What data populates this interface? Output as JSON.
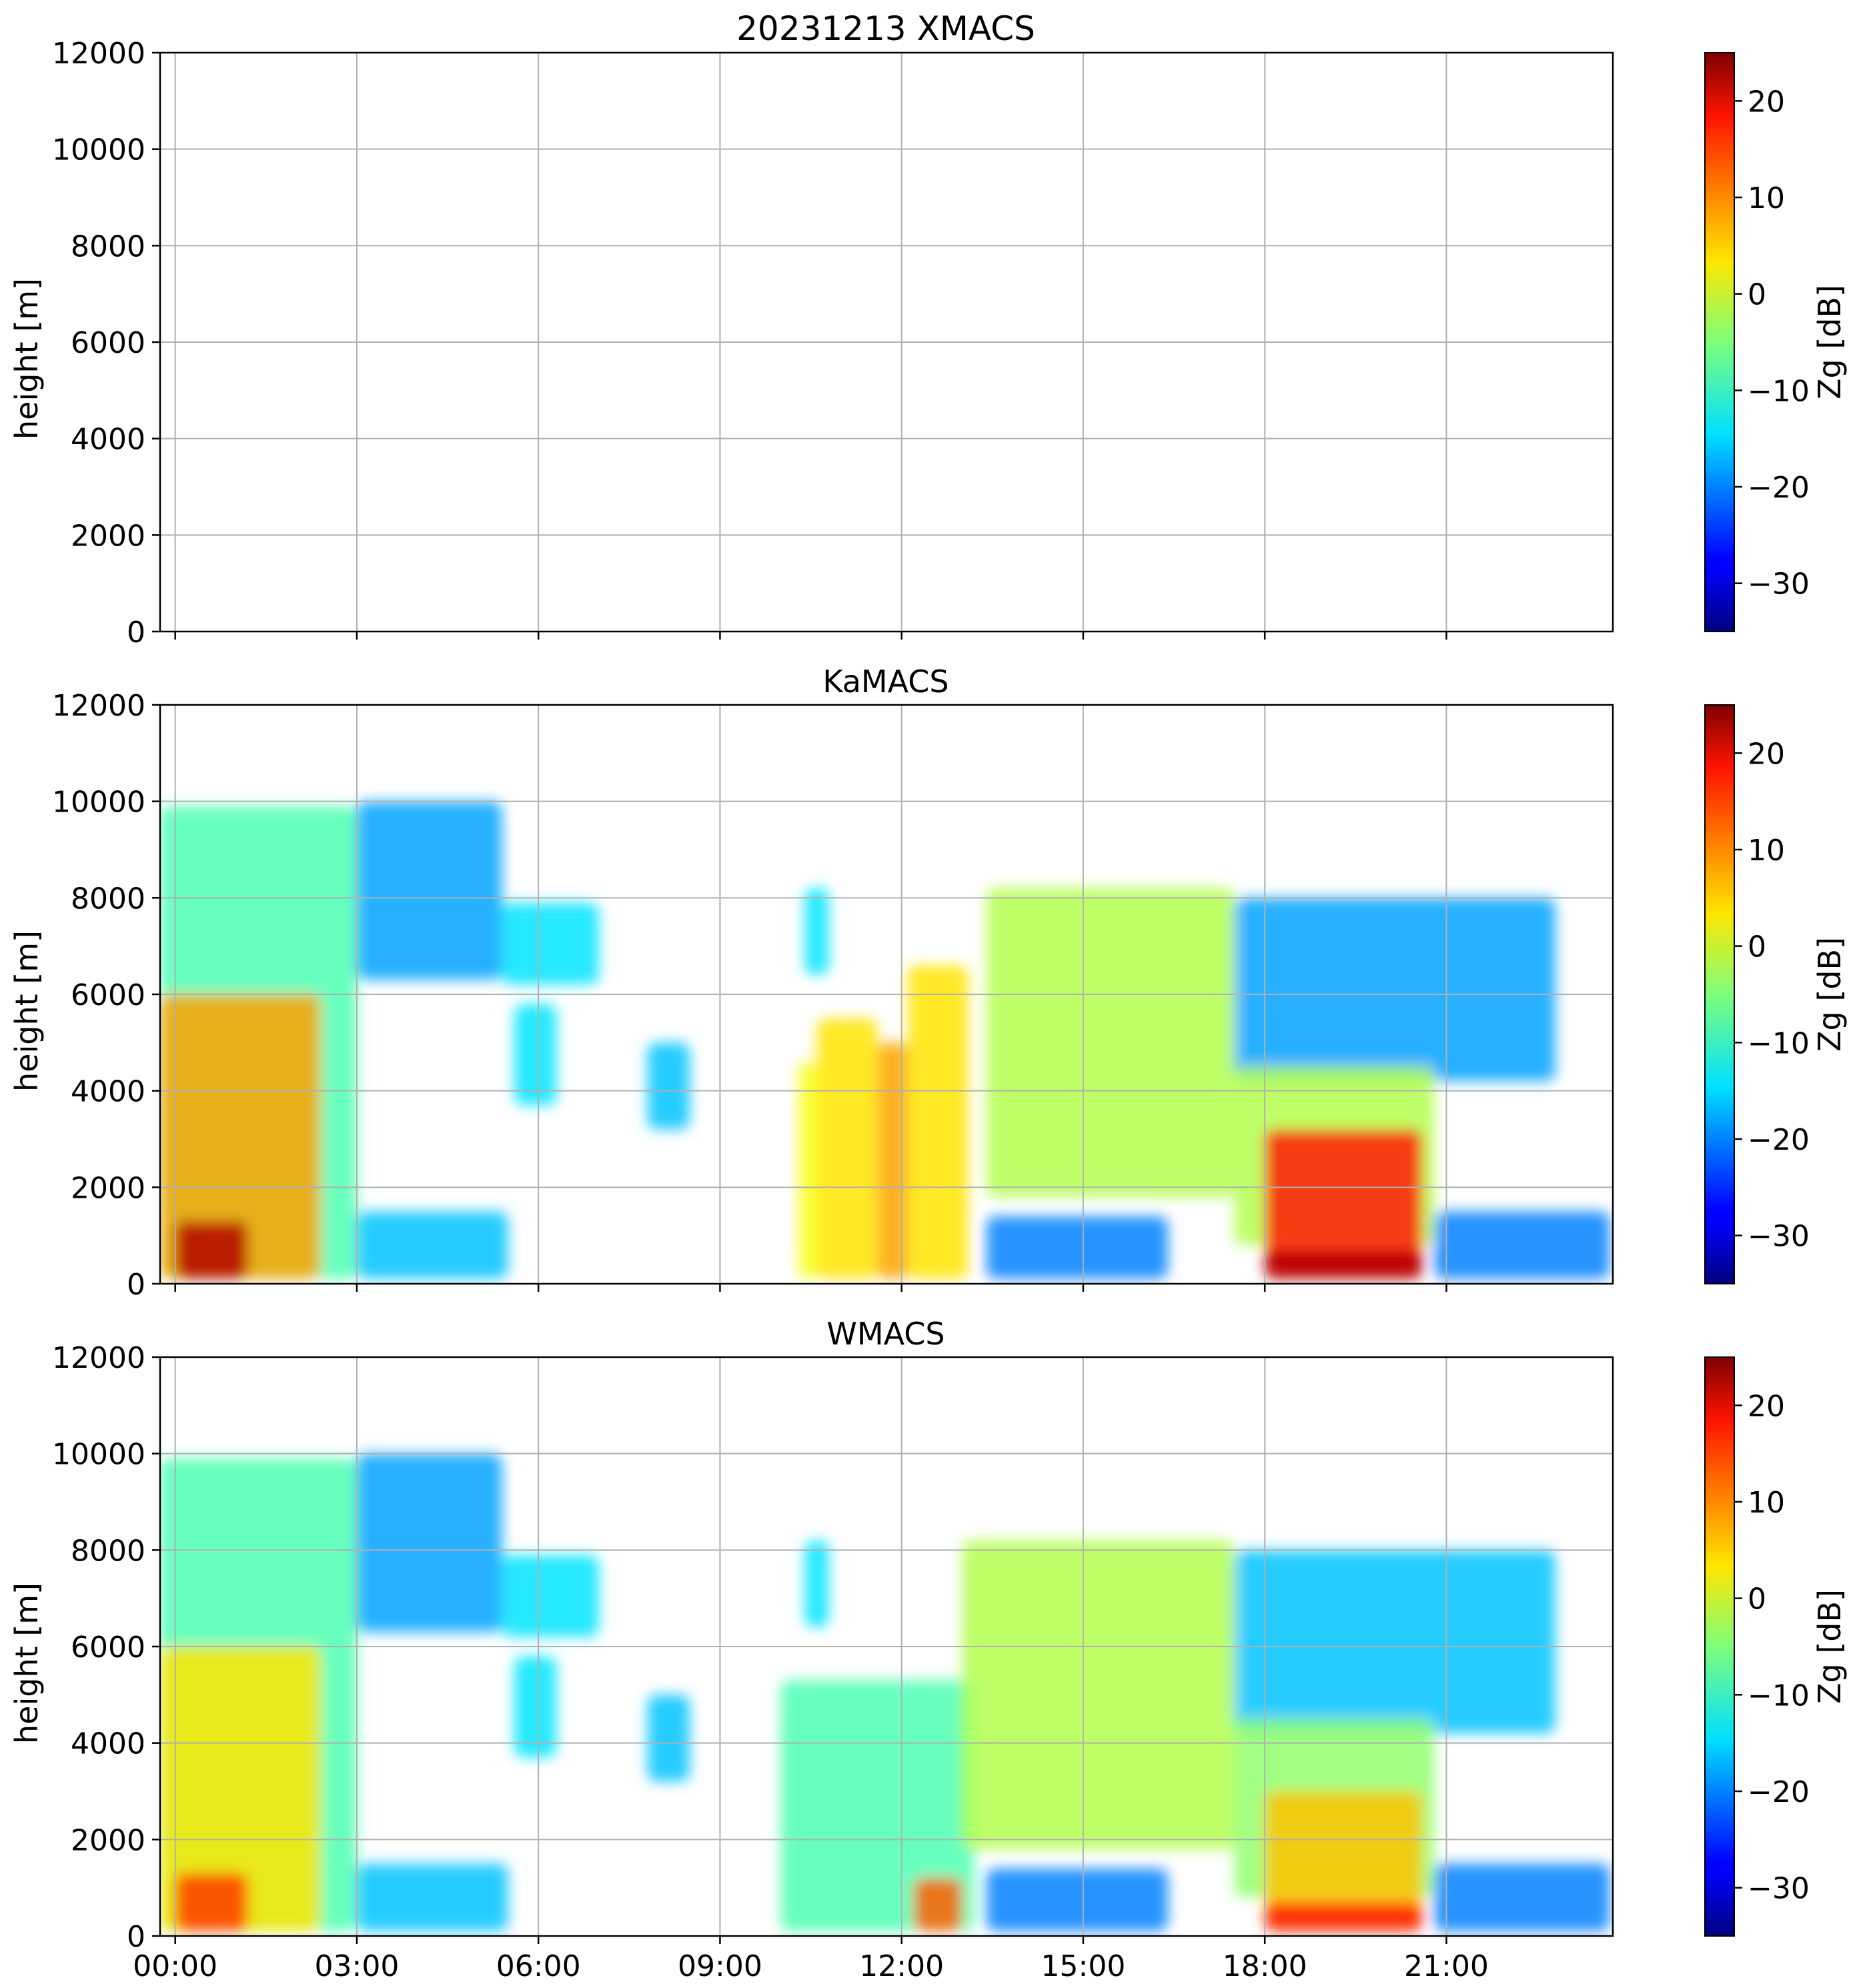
{
  "chart_data": [
    {
      "type": "heatmap",
      "title": "20231213 XMACS",
      "ylabel": "height [m]",
      "ylim": [
        0,
        12000
      ],
      "yticks": [
        "0",
        "2000",
        "4000",
        "6000",
        "8000",
        "10000",
        "12000"
      ],
      "xticks": [],
      "grid": true,
      "colorbar": {
        "label": "Zg [dB]",
        "range": [
          -35,
          25
        ],
        "ticks": [
          "−30",
          "−20",
          "−10",
          "0",
          "10",
          "20"
        ],
        "colormap": "jet"
      },
      "echoes": []
    },
    {
      "type": "heatmap",
      "title": "KaMACS",
      "ylabel": "height [m]",
      "ylim": [
        0,
        12000
      ],
      "yticks": [
        "0",
        "2000",
        "4000",
        "6000",
        "8000",
        "10000",
        "12000"
      ],
      "xticks": [],
      "grid": true,
      "colorbar": {
        "label": "Zg [dB]",
        "range": [
          -35,
          25
        ],
        "ticks": [
          "−30",
          "−20",
          "−10",
          "0",
          "10",
          "20"
        ],
        "colormap": "jet"
      },
      "echoes": [
        {
          "t": [
            -0.25,
            3.0
          ],
          "h": [
            100,
            9900
          ],
          "z": -8
        },
        {
          "t": [
            -0.25,
            2.4
          ],
          "h": [
            100,
            6000
          ],
          "z": 8
        },
        {
          "t": [
            0.0,
            1.2
          ],
          "h": [
            100,
            1300
          ],
          "z": 22
        },
        {
          "t": [
            3.0,
            5.4
          ],
          "h": [
            6300,
            10000
          ],
          "z": -18
        },
        {
          "t": [
            5.4,
            7.0
          ],
          "h": [
            6200,
            7900
          ],
          "z": -14
        },
        {
          "t": [
            5.6,
            6.3
          ],
          "h": [
            3700,
            5800
          ],
          "z": -14
        },
        {
          "t": [
            3.0,
            5.5
          ],
          "h": [
            100,
            1500
          ],
          "z": -16
        },
        {
          "t": [
            7.8,
            8.5
          ],
          "h": [
            3200,
            5000
          ],
          "z": -16
        },
        {
          "t": [
            10.3,
            10.6
          ],
          "h": [
            100,
            4600
          ],
          "z": 2
        },
        {
          "t": [
            10.6,
            11.6
          ],
          "h": [
            100,
            5500
          ],
          "z": 4
        },
        {
          "t": [
            11.6,
            12.1
          ],
          "h": [
            100,
            5000
          ],
          "z": 8
        },
        {
          "t": [
            12.1,
            13.1
          ],
          "h": [
            100,
            6600
          ],
          "z": 4
        },
        {
          "t": [
            10.4,
            10.8
          ],
          "h": [
            6400,
            8200
          ],
          "z": -14
        },
        {
          "t": [
            13.4,
            17.5
          ],
          "h": [
            1800,
            8200
          ],
          "z": -2
        },
        {
          "t": [
            17.5,
            22.8
          ],
          "h": [
            4200,
            8000
          ],
          "z": -18
        },
        {
          "t": [
            17.5,
            20.8
          ],
          "h": [
            800,
            4500
          ],
          "z": -2
        },
        {
          "t": [
            18.0,
            20.6
          ],
          "h": [
            100,
            3200
          ],
          "z": 16
        },
        {
          "t": [
            18.0,
            20.6
          ],
          "h": [
            100,
            700
          ],
          "z": 22
        },
        {
          "t": [
            20.8,
            23.7
          ],
          "h": [
            100,
            1500
          ],
          "z": -20
        },
        {
          "t": [
            13.4,
            16.4
          ],
          "h": [
            100,
            1400
          ],
          "z": -20
        }
      ]
    },
    {
      "type": "heatmap",
      "title": "WMACS",
      "ylabel": "height [m]",
      "ylim": [
        0,
        12000
      ],
      "yticks": [
        "0",
        "2000",
        "4000",
        "6000",
        "8000",
        "10000",
        "12000"
      ],
      "xticks": [
        "00:00",
        "03:00",
        "06:00",
        "09:00",
        "12:00",
        "15:00",
        "18:00",
        "21:00"
      ],
      "grid": true,
      "colorbar": {
        "label": "Zg [dB]",
        "range": [
          -35,
          25
        ],
        "ticks": [
          "−30",
          "−20",
          "−10",
          "0",
          "10",
          "20"
        ],
        "colormap": "jet"
      },
      "echoes": [
        {
          "t": [
            -0.25,
            3.0
          ],
          "h": [
            100,
            9900
          ],
          "z": -8
        },
        {
          "t": [
            -0.25,
            2.4
          ],
          "h": [
            100,
            6000
          ],
          "z": 4
        },
        {
          "t": [
            0.0,
            1.2
          ],
          "h": [
            100,
            1300
          ],
          "z": 14
        },
        {
          "t": [
            3.0,
            5.4
          ],
          "h": [
            6300,
            10000
          ],
          "z": -18
        },
        {
          "t": [
            5.4,
            7.0
          ],
          "h": [
            6200,
            7900
          ],
          "z": -14
        },
        {
          "t": [
            5.6,
            6.3
          ],
          "h": [
            3700,
            5800
          ],
          "z": -14
        },
        {
          "t": [
            3.0,
            5.5
          ],
          "h": [
            100,
            1500
          ],
          "z": -16
        },
        {
          "t": [
            7.8,
            8.5
          ],
          "h": [
            3200,
            5000
          ],
          "z": -16
        },
        {
          "t": [
            10.0,
            13.2
          ],
          "h": [
            100,
            5300
          ],
          "z": -8
        },
        {
          "t": [
            12.2,
            13.0
          ],
          "h": [
            100,
            1200
          ],
          "z": 12
        },
        {
          "t": [
            10.4,
            10.8
          ],
          "h": [
            6400,
            8200
          ],
          "z": -14
        },
        {
          "t": [
            13.0,
            17.5
          ],
          "h": [
            1800,
            8200
          ],
          "z": -2
        },
        {
          "t": [
            17.5,
            22.8
          ],
          "h": [
            4200,
            8000
          ],
          "z": -16
        },
        {
          "t": [
            17.5,
            20.8
          ],
          "h": [
            800,
            4500
          ],
          "z": -4
        },
        {
          "t": [
            18.0,
            20.6
          ],
          "h": [
            100,
            3000
          ],
          "z": 6
        },
        {
          "t": [
            18.0,
            20.6
          ],
          "h": [
            100,
            700
          ],
          "z": 16
        },
        {
          "t": [
            20.8,
            23.7
          ],
          "h": [
            100,
            1500
          ],
          "z": -20
        },
        {
          "t": [
            13.4,
            16.4
          ],
          "h": [
            100,
            1400
          ],
          "z": -20
        }
      ]
    }
  ]
}
